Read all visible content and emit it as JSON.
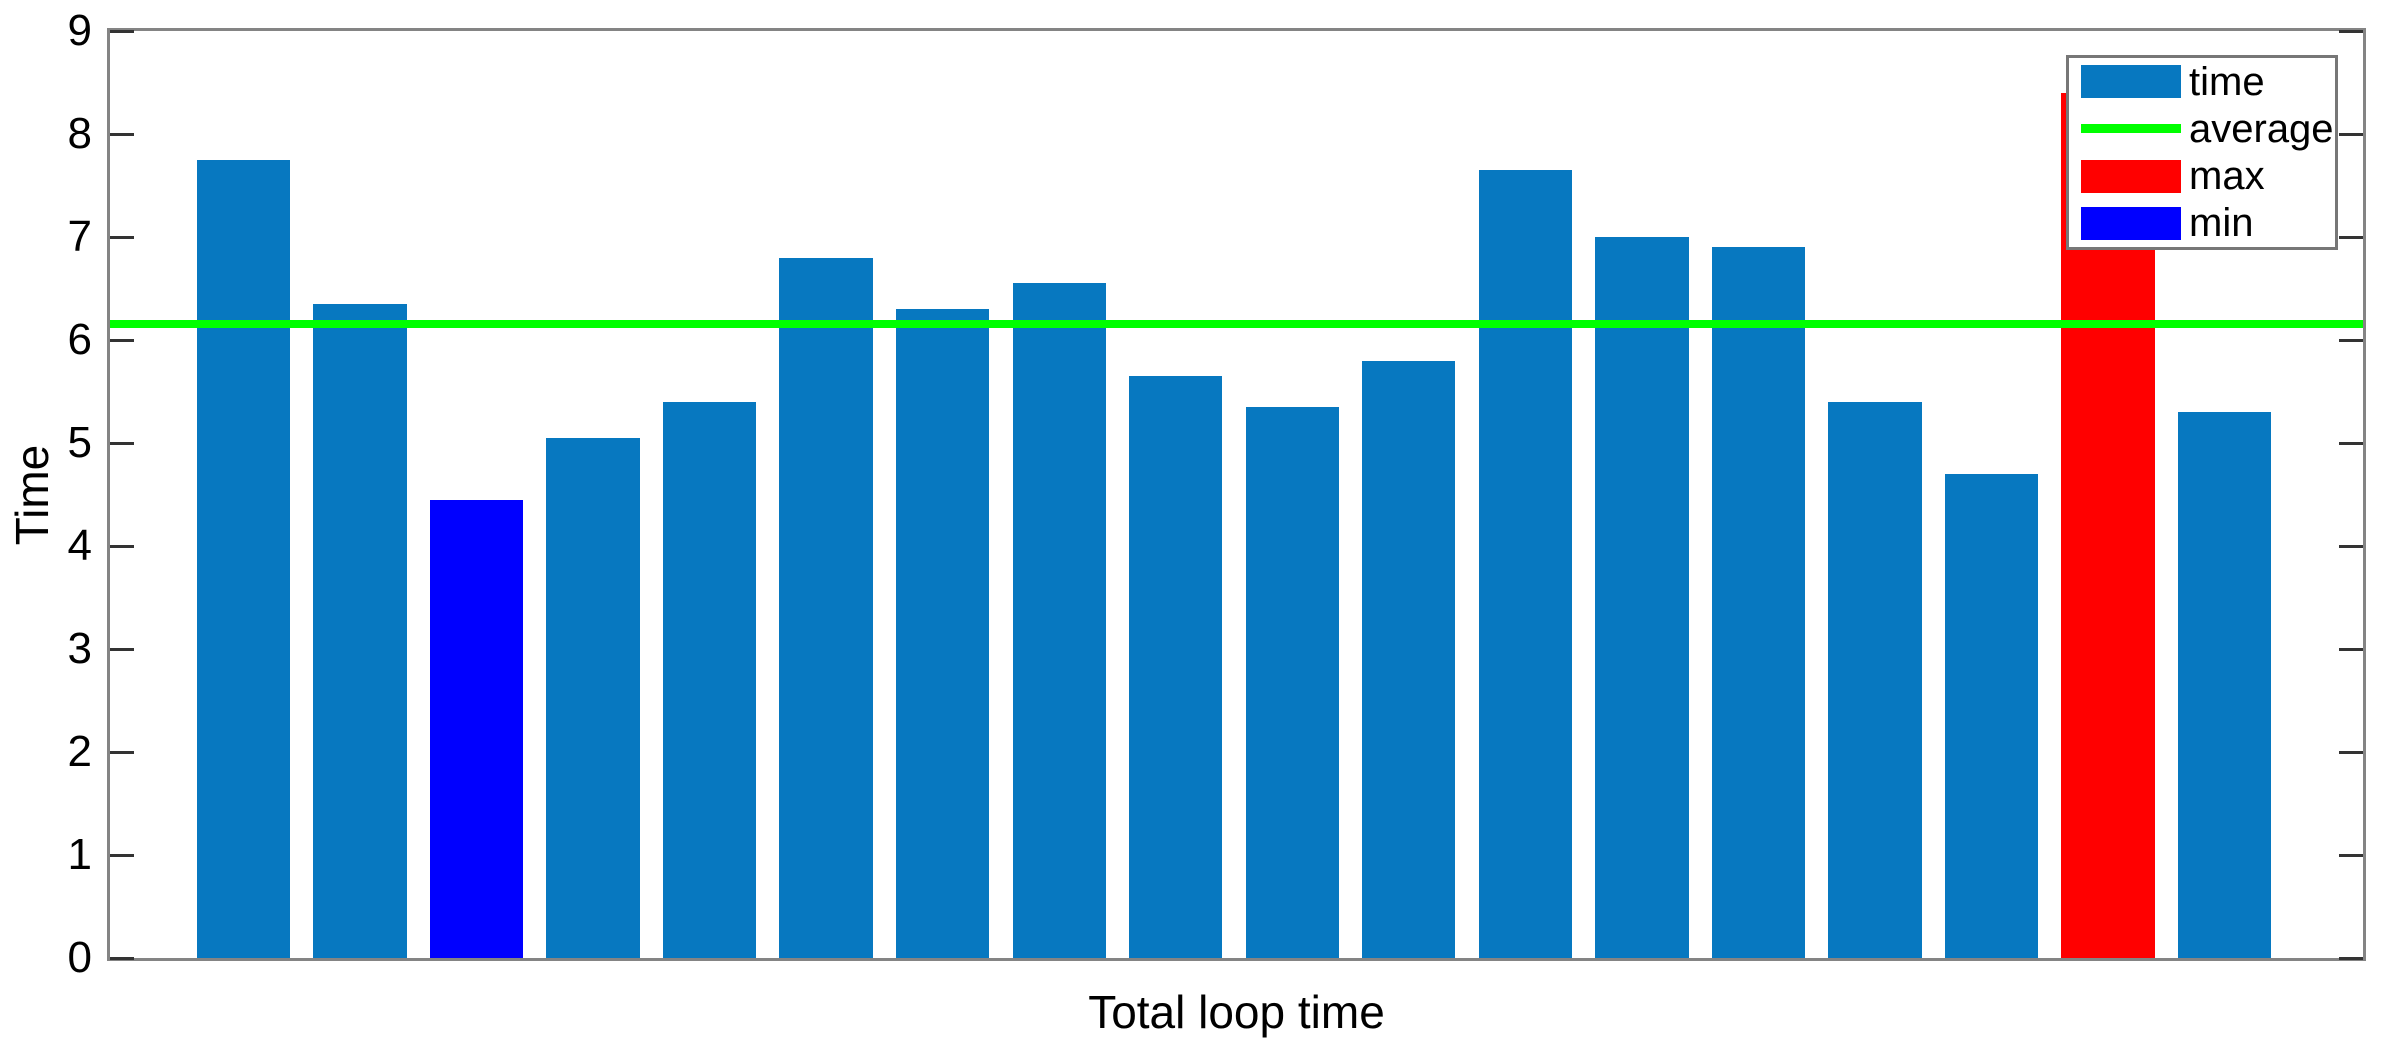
{
  "chart_data": {
    "type": "bar",
    "title": "",
    "xlabel": "Total loop time",
    "ylabel": "Time",
    "ylim": [
      0,
      9
    ],
    "yticks": [
      0,
      1,
      2,
      3,
      4,
      5,
      6,
      7,
      8,
      9
    ],
    "n_bars": 18,
    "values": [
      7.75,
      6.35,
      4.45,
      5.05,
      5.4,
      6.8,
      6.3,
      6.55,
      5.65,
      5.35,
      5.8,
      7.65,
      7.0,
      6.9,
      5.4,
      4.7,
      8.4,
      5.3
    ],
    "special": {
      "min_index": 2,
      "max_index": 16
    },
    "average": 6.16,
    "grid": false,
    "legend": {
      "position": "top-right",
      "entries": [
        {
          "label": "time",
          "swatch": "patch",
          "color": "#0778C0"
        },
        {
          "label": "average",
          "swatch": "line",
          "color": "#00ff00"
        },
        {
          "label": "max",
          "swatch": "patch",
          "color": "#ff0000"
        },
        {
          "label": "min",
          "swatch": "patch",
          "color": "#0000ff"
        }
      ]
    },
    "colors": {
      "bar": "#0778C0",
      "min": "#0000ff",
      "max": "#ff0000",
      "average": "#00ff00",
      "axis_box": "#848484",
      "tick": "#333333",
      "text": "#000000",
      "background": "#ffffff"
    }
  }
}
